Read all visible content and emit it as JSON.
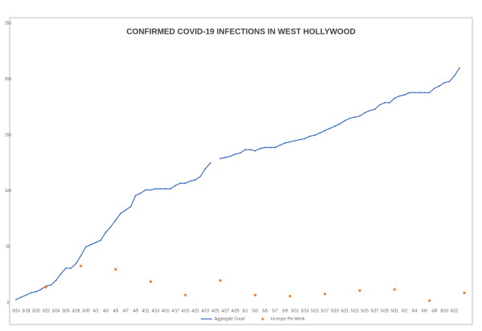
{
  "chart_data": {
    "type": "line",
    "title": "CONFIRMED COVID-19 INFECTIONS IN WEST HOLLYWOOD",
    "categories": [
      "3/16",
      null,
      "3/18",
      null,
      "3/20",
      null,
      "3/22",
      null,
      "3/24",
      null,
      "3/26",
      null,
      "3/28",
      null,
      "3/30",
      null,
      "4/1",
      null,
      "4/3",
      null,
      "4/5",
      null,
      "4/7",
      null,
      "4/9",
      null,
      "4/11",
      null,
      "4/13",
      null,
      "4/15",
      null,
      "4/17",
      null,
      "4/19",
      null,
      "4/21",
      null,
      "4/23",
      null,
      "4/25",
      null,
      "4/27",
      null,
      "4/29",
      null,
      "5/1",
      null,
      "5/3",
      null,
      "5/5",
      null,
      "5/7",
      null,
      "5/9",
      null,
      "5/11",
      null,
      "5/13",
      null,
      "5/15",
      null,
      "5/17",
      null,
      "5/19",
      null,
      "5/21",
      null,
      "5/23",
      null,
      "5/25",
      null,
      "5/27",
      null,
      "5/29",
      null,
      "5/31",
      null,
      "6/2",
      null,
      "6/4",
      null,
      "6/6",
      null,
      "6/8",
      null,
      "6/10",
      null,
      "6/12",
      null,
      null
    ],
    "series": [
      {
        "name": "Aggregate Count",
        "color": "#4472c4",
        "style": "line",
        "values": [
          3,
          5,
          7,
          9,
          10,
          12,
          15,
          16,
          20,
          26,
          31,
          31,
          35,
          42,
          50,
          52,
          54,
          56,
          63,
          68,
          74,
          80,
          83,
          86,
          96,
          98,
          101,
          101,
          102,
          102,
          102,
          102,
          105,
          107,
          107,
          109,
          110,
          113,
          120,
          125,
          null,
          129,
          130,
          131,
          133,
          134,
          137,
          137,
          136,
          138,
          139,
          139,
          139,
          141,
          143,
          144,
          145,
          146,
          147,
          149,
          150,
          152,
          154,
          156,
          158,
          160,
          163,
          165,
          166,
          167,
          170,
          172,
          173,
          177,
          179,
          179,
          183,
          185,
          186,
          188,
          188,
          188,
          188,
          188,
          192,
          194,
          197,
          198,
          203,
          210,
          null
        ]
      },
      {
        "name": "Increase Per Week",
        "color": "#ed7d31",
        "style": "markers",
        "values": [
          null,
          null,
          null,
          null,
          null,
          null,
          14,
          null,
          null,
          null,
          null,
          null,
          null,
          33,
          null,
          null,
          null,
          null,
          null,
          null,
          30,
          null,
          null,
          null,
          null,
          null,
          null,
          19,
          null,
          null,
          null,
          null,
          null,
          null,
          7,
          null,
          null,
          null,
          null,
          null,
          null,
          20,
          null,
          null,
          null,
          null,
          null,
          null,
          7,
          null,
          null,
          null,
          null,
          null,
          null,
          6,
          null,
          null,
          null,
          null,
          null,
          null,
          8,
          null,
          null,
          null,
          null,
          null,
          null,
          11,
          null,
          null,
          null,
          null,
          null,
          null,
          12,
          null,
          null,
          null,
          null,
          null,
          null,
          2,
          null,
          null,
          null,
          null,
          null,
          null,
          9
        ]
      }
    ],
    "ylim": [
      0,
      250
    ],
    "yticks": [
      0,
      50,
      100,
      150,
      200,
      250
    ],
    "grid": false,
    "legend": "bottom"
  }
}
